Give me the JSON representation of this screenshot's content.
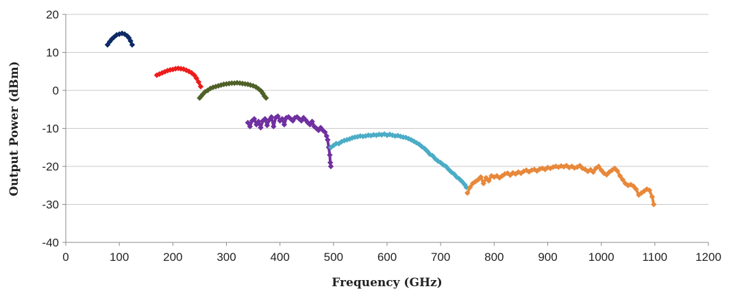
{
  "chart_data": {
    "type": "scatter",
    "xlabel": "Frequency (GHz)",
    "ylabel": "Output Power (dBm)",
    "xlim": [
      0,
      1200
    ],
    "ylim": [
      -40,
      20
    ],
    "x_ticks": [
      0,
      100,
      200,
      300,
      400,
      500,
      600,
      700,
      800,
      900,
      1000,
      1100,
      1200
    ],
    "y_ticks": [
      20,
      10,
      0,
      -10,
      -20,
      -30,
      -40
    ],
    "grid": "horizontal",
    "legend": "none",
    "series": [
      {
        "color": "#0d2a66",
        "points": [
          [
            78,
            12
          ],
          [
            82,
            12.8
          ],
          [
            86,
            13.5
          ],
          [
            90,
            14
          ],
          [
            95,
            14.6
          ],
          [
            100,
            14.8
          ],
          [
            105,
            15
          ],
          [
            110,
            14.8
          ],
          [
            115,
            14.3
          ],
          [
            118,
            13.8
          ],
          [
            121,
            13
          ],
          [
            124,
            12
          ]
        ]
      },
      {
        "color": "#ee1c1c",
        "points": [
          [
            170,
            4
          ],
          [
            175,
            4.3
          ],
          [
            180,
            4.6
          ],
          [
            185,
            4.9
          ],
          [
            190,
            5.2
          ],
          [
            195,
            5.4
          ],
          [
            200,
            5.5
          ],
          [
            205,
            5.7
          ],
          [
            210,
            5.8
          ],
          [
            215,
            5.7
          ],
          [
            220,
            5.6
          ],
          [
            225,
            5.3
          ],
          [
            230,
            5
          ],
          [
            235,
            4.6
          ],
          [
            240,
            4
          ],
          [
            244,
            3.2
          ],
          [
            248,
            2.2
          ],
          [
            252,
            1
          ]
        ]
      },
      {
        "color": "#4f6128",
        "points": [
          [
            250,
            -2
          ],
          [
            253,
            -1.5
          ],
          [
            256,
            -1
          ],
          [
            260,
            -0.4
          ],
          [
            265,
            0
          ],
          [
            270,
            0.5
          ],
          [
            275,
            0.8
          ],
          [
            280,
            1
          ],
          [
            285,
            1.2
          ],
          [
            290,
            1.4
          ],
          [
            295,
            1.6
          ],
          [
            300,
            1.7
          ],
          [
            305,
            1.8
          ],
          [
            310,
            1.9
          ],
          [
            315,
            1.9
          ],
          [
            320,
            2
          ],
          [
            325,
            1.9
          ],
          [
            330,
            1.8
          ],
          [
            335,
            1.7
          ],
          [
            340,
            1.6
          ],
          [
            345,
            1.4
          ],
          [
            350,
            1.2
          ],
          [
            355,
            0.9
          ],
          [
            360,
            0.4
          ],
          [
            365,
            -0.2
          ],
          [
            368,
            -0.8
          ],
          [
            371,
            -1.5
          ],
          [
            374,
            -2
          ]
        ]
      },
      {
        "color": "#7030a0",
        "points": [
          [
            340,
            -8.5
          ],
          [
            344,
            -9.5
          ],
          [
            348,
            -8
          ],
          [
            352,
            -7.5
          ],
          [
            356,
            -9
          ],
          [
            360,
            -8.2
          ],
          [
            364,
            -9.8
          ],
          [
            368,
            -8
          ],
          [
            372,
            -7.5
          ],
          [
            376,
            -9.2
          ],
          [
            380,
            -7.8
          ],
          [
            384,
            -7
          ],
          [
            388,
            -9.5
          ],
          [
            392,
            -7.2
          ],
          [
            396,
            -6.8
          ],
          [
            400,
            -8
          ],
          [
            404,
            -7.5
          ],
          [
            408,
            -9
          ],
          [
            412,
            -7.2
          ],
          [
            416,
            -7
          ],
          [
            420,
            -7.5
          ],
          [
            424,
            -8
          ],
          [
            428,
            -7.2
          ],
          [
            432,
            -7
          ],
          [
            436,
            -7.5
          ],
          [
            440,
            -8
          ],
          [
            444,
            -7.2
          ],
          [
            448,
            -7.8
          ],
          [
            452,
            -8.5
          ],
          [
            456,
            -9
          ],
          [
            460,
            -8.2
          ],
          [
            464,
            -9.5
          ],
          [
            468,
            -10
          ],
          [
            472,
            -10.5
          ],
          [
            476,
            -9.8
          ],
          [
            480,
            -10.5
          ],
          [
            484,
            -11
          ],
          [
            487,
            -12
          ],
          [
            489,
            -13
          ],
          [
            491,
            -15
          ],
          [
            493,
            -17
          ],
          [
            494,
            -19
          ],
          [
            495,
            -20
          ]
        ]
      },
      {
        "color": "#4bacc6",
        "points": [
          [
            495,
            -15
          ],
          [
            500,
            -14.5
          ],
          [
            505,
            -14
          ],
          [
            510,
            -14
          ],
          [
            515,
            -13.5
          ],
          [
            520,
            -13.2
          ],
          [
            525,
            -13
          ],
          [
            530,
            -12.8
          ],
          [
            535,
            -12.5
          ],
          [
            540,
            -12.3
          ],
          [
            545,
            -12.2
          ],
          [
            550,
            -12
          ],
          [
            555,
            -12.1
          ],
          [
            560,
            -12
          ],
          [
            565,
            -11.8
          ],
          [
            570,
            -11.9
          ],
          [
            575,
            -11.7
          ],
          [
            580,
            -11.8
          ],
          [
            585,
            -11.6
          ],
          [
            590,
            -11.7
          ],
          [
            595,
            -11.5
          ],
          [
            600,
            -11.8
          ],
          [
            605,
            -11.6
          ],
          [
            610,
            -11.8
          ],
          [
            615,
            -12
          ],
          [
            620,
            -11.9
          ],
          [
            625,
            -12.1
          ],
          [
            630,
            -12.3
          ],
          [
            635,
            -12.4
          ],
          [
            640,
            -12.7
          ],
          [
            645,
            -13
          ],
          [
            650,
            -13.4
          ],
          [
            655,
            -13.8
          ],
          [
            660,
            -14.2
          ],
          [
            665,
            -14.8
          ],
          [
            670,
            -15.3
          ],
          [
            675,
            -16
          ],
          [
            680,
            -16.8
          ],
          [
            685,
            -17.2
          ],
          [
            690,
            -18
          ],
          [
            695,
            -18.6
          ],
          [
            700,
            -19
          ],
          [
            705,
            -19.6
          ],
          [
            710,
            -20
          ],
          [
            715,
            -20.8
          ],
          [
            720,
            -21.5
          ],
          [
            725,
            -22
          ],
          [
            730,
            -22.8
          ],
          [
            735,
            -23.3
          ],
          [
            740,
            -24
          ],
          [
            745,
            -24.8
          ],
          [
            748,
            -25.5
          ]
        ]
      },
      {
        "color": "#e8883a",
        "points": [
          [
            750,
            -27
          ],
          [
            755,
            -25.5
          ],
          [
            760,
            -24.5
          ],
          [
            765,
            -24
          ],
          [
            770,
            -23.5
          ],
          [
            775,
            -22.8
          ],
          [
            780,
            -24.5
          ],
          [
            785,
            -23
          ],
          [
            790,
            -23.8
          ],
          [
            795,
            -22.5
          ],
          [
            800,
            -22.8
          ],
          [
            805,
            -22.5
          ],
          [
            810,
            -23
          ],
          [
            815,
            -22.5
          ],
          [
            820,
            -22
          ],
          [
            825,
            -21.8
          ],
          [
            830,
            -22.3
          ],
          [
            835,
            -21.7
          ],
          [
            840,
            -22
          ],
          [
            845,
            -21.5
          ],
          [
            850,
            -21.8
          ],
          [
            855,
            -21.3
          ],
          [
            860,
            -21
          ],
          [
            865,
            -21.4
          ],
          [
            870,
            -21
          ],
          [
            875,
            -20.8
          ],
          [
            880,
            -21.2
          ],
          [
            885,
            -20.7
          ],
          [
            890,
            -20.5
          ],
          [
            895,
            -20.8
          ],
          [
            900,
            -20.3
          ],
          [
            905,
            -20.5
          ],
          [
            910,
            -20.2
          ],
          [
            915,
            -20
          ],
          [
            920,
            -20.2
          ],
          [
            925,
            -19.9
          ],
          [
            930,
            -20.1
          ],
          [
            935,
            -19.8
          ],
          [
            940,
            -20.3
          ],
          [
            945,
            -20
          ],
          [
            950,
            -20.4
          ],
          [
            955,
            -20.2
          ],
          [
            960,
            -19.8
          ],
          [
            965,
            -20.5
          ],
          [
            970,
            -20.8
          ],
          [
            975,
            -21.3
          ],
          [
            980,
            -20.9
          ],
          [
            985,
            -21.5
          ],
          [
            990,
            -20.5
          ],
          [
            995,
            -20
          ],
          [
            1000,
            -21
          ],
          [
            1005,
            -21.8
          ],
          [
            1010,
            -22.2
          ],
          [
            1015,
            -21.5
          ],
          [
            1020,
            -21
          ],
          [
            1025,
            -20.5
          ],
          [
            1030,
            -21.2
          ],
          [
            1035,
            -22.5
          ],
          [
            1040,
            -23.5
          ],
          [
            1045,
            -24.5
          ],
          [
            1050,
            -25
          ],
          [
            1055,
            -24.8
          ],
          [
            1060,
            -25.2
          ],
          [
            1065,
            -26
          ],
          [
            1070,
            -27.5
          ],
          [
            1075,
            -27
          ],
          [
            1080,
            -26.5
          ],
          [
            1085,
            -26
          ],
          [
            1090,
            -26.3
          ],
          [
            1095,
            -28
          ],
          [
            1098,
            -30
          ]
        ]
      }
    ]
  }
}
